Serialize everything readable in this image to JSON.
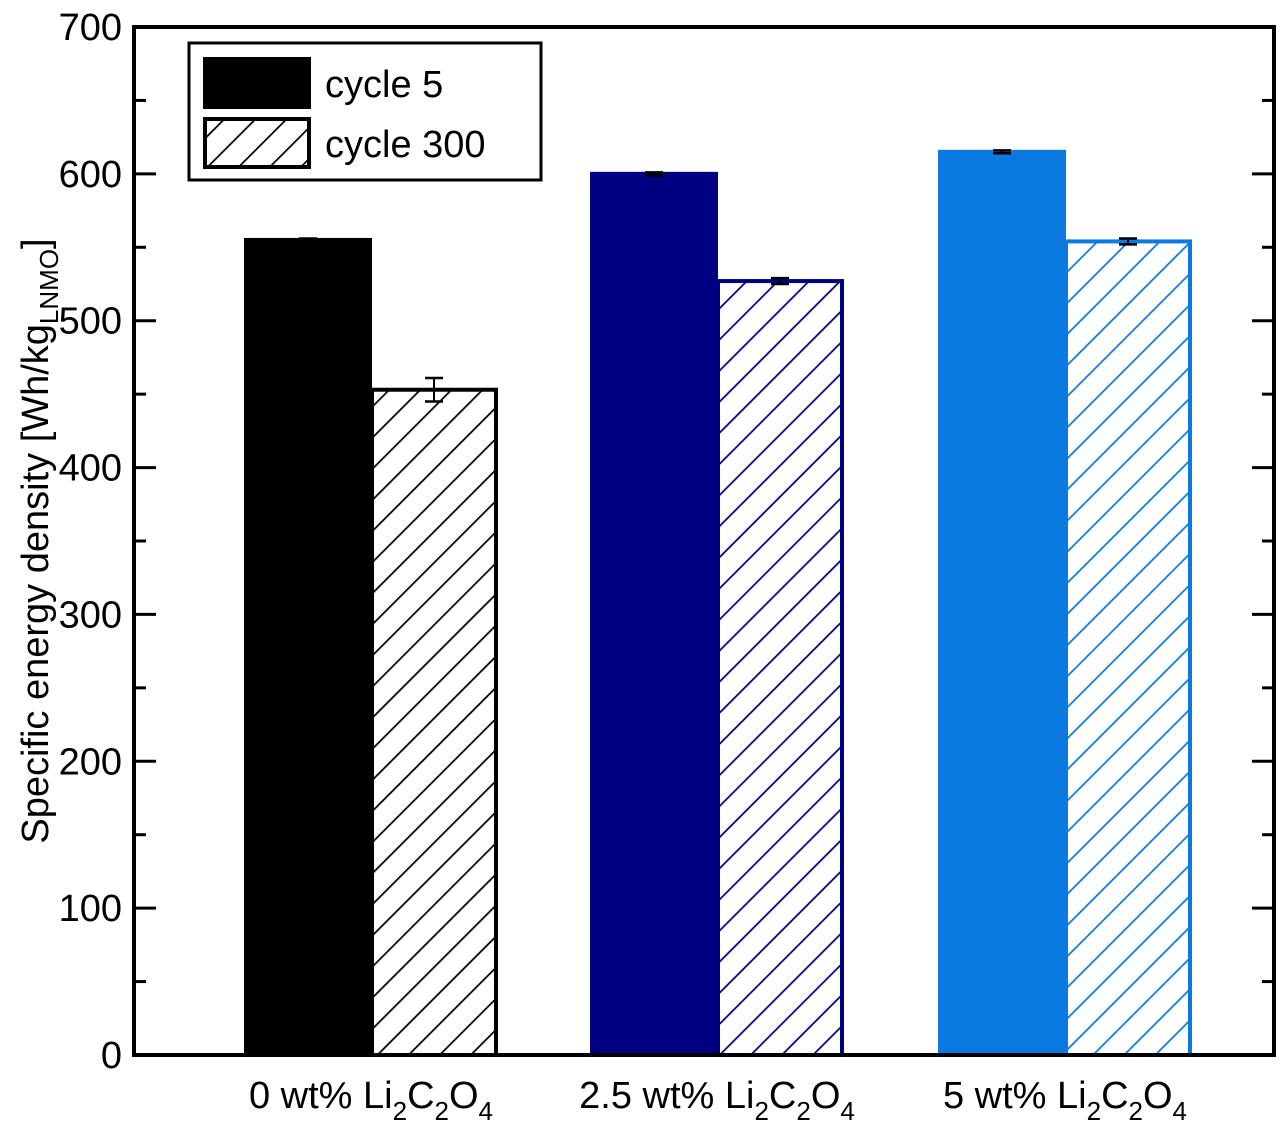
{
  "chart_data": {
    "type": "bar",
    "ylabel": "Specific energy density [Wh/kg",
    "ylabel_subscript": "LNMO",
    "ylabel_close": "]",
    "ylim": [
      0,
      700
    ],
    "yticks": [
      0,
      100,
      200,
      300,
      400,
      500,
      600,
      700
    ],
    "grid": false,
    "legend_position": "top-left",
    "categories": [
      {
        "parts": [
          [
            "0 wt% Li",
            false
          ],
          [
            "2",
            true
          ],
          [
            "C",
            false
          ],
          [
            "2",
            true
          ],
          [
            "O",
            false
          ],
          [
            "4",
            true
          ]
        ]
      },
      {
        "parts": [
          [
            "2.5 wt% Li",
            false
          ],
          [
            "2",
            true
          ],
          [
            "C",
            false
          ],
          [
            "2",
            true
          ],
          [
            "O",
            false
          ],
          [
            "4",
            true
          ]
        ]
      },
      {
        "parts": [
          [
            "5 wt% Li",
            false
          ],
          [
            "2",
            true
          ],
          [
            "C",
            false
          ],
          [
            "2",
            true
          ],
          [
            "O",
            false
          ],
          [
            "4",
            true
          ]
        ]
      }
    ],
    "category_colors": [
      "#000000",
      "#000080",
      "#0A7AE0"
    ],
    "series": [
      {
        "name": "cycle 5",
        "style": "solid",
        "values": [
          555,
          600,
          615
        ],
        "errors": [
          1,
          1,
          1
        ]
      },
      {
        "name": "cycle 300",
        "style": "hatched",
        "values": [
          453,
          527,
          554
        ],
        "errors": [
          8,
          2,
          2
        ]
      }
    ]
  }
}
